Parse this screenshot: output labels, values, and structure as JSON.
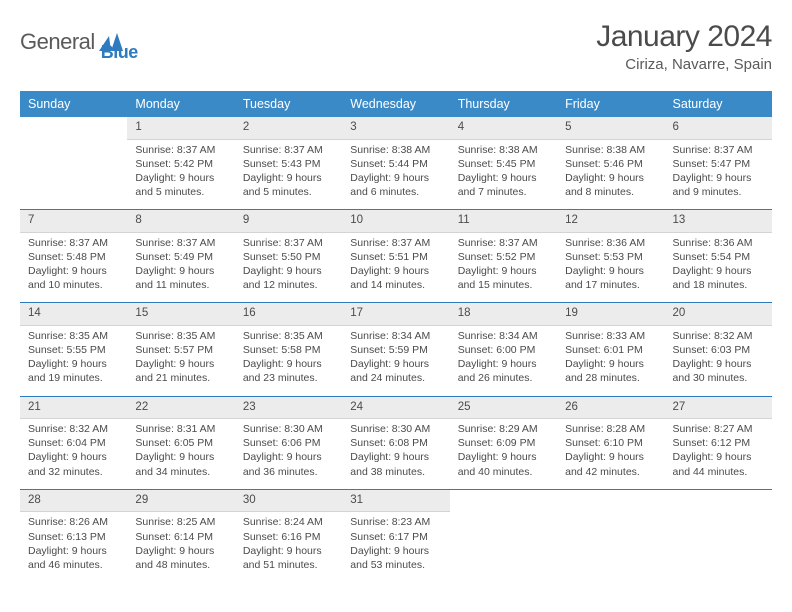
{
  "logo": {
    "text1": "General",
    "text2": "Blue",
    "icon_color": "#2f7bbf"
  },
  "title": "January 2024",
  "location": "Ciriza, Navarre, Spain",
  "colors": {
    "header_bg": "#3a8ac8",
    "header_text": "#ffffff",
    "daynum_bg": "#ececec",
    "separator": "#2f7bbf",
    "body_text": "#4b4b4b"
  },
  "day_names": [
    "Sunday",
    "Monday",
    "Tuesday",
    "Wednesday",
    "Thursday",
    "Friday",
    "Saturday"
  ],
  "weeks": [
    [
      {
        "num": "",
        "sunrise": "",
        "sunset": "",
        "daylight": ""
      },
      {
        "num": "1",
        "sunrise": "Sunrise: 8:37 AM",
        "sunset": "Sunset: 5:42 PM",
        "daylight": "Daylight: 9 hours and 5 minutes."
      },
      {
        "num": "2",
        "sunrise": "Sunrise: 8:37 AM",
        "sunset": "Sunset: 5:43 PM",
        "daylight": "Daylight: 9 hours and 5 minutes."
      },
      {
        "num": "3",
        "sunrise": "Sunrise: 8:38 AM",
        "sunset": "Sunset: 5:44 PM",
        "daylight": "Daylight: 9 hours and 6 minutes."
      },
      {
        "num": "4",
        "sunrise": "Sunrise: 8:38 AM",
        "sunset": "Sunset: 5:45 PM",
        "daylight": "Daylight: 9 hours and 7 minutes."
      },
      {
        "num": "5",
        "sunrise": "Sunrise: 8:38 AM",
        "sunset": "Sunset: 5:46 PM",
        "daylight": "Daylight: 9 hours and 8 minutes."
      },
      {
        "num": "6",
        "sunrise": "Sunrise: 8:37 AM",
        "sunset": "Sunset: 5:47 PM",
        "daylight": "Daylight: 9 hours and 9 minutes."
      }
    ],
    [
      {
        "num": "7",
        "sunrise": "Sunrise: 8:37 AM",
        "sunset": "Sunset: 5:48 PM",
        "daylight": "Daylight: 9 hours and 10 minutes."
      },
      {
        "num": "8",
        "sunrise": "Sunrise: 8:37 AM",
        "sunset": "Sunset: 5:49 PM",
        "daylight": "Daylight: 9 hours and 11 minutes."
      },
      {
        "num": "9",
        "sunrise": "Sunrise: 8:37 AM",
        "sunset": "Sunset: 5:50 PM",
        "daylight": "Daylight: 9 hours and 12 minutes."
      },
      {
        "num": "10",
        "sunrise": "Sunrise: 8:37 AM",
        "sunset": "Sunset: 5:51 PM",
        "daylight": "Daylight: 9 hours and 14 minutes."
      },
      {
        "num": "11",
        "sunrise": "Sunrise: 8:37 AM",
        "sunset": "Sunset: 5:52 PM",
        "daylight": "Daylight: 9 hours and 15 minutes."
      },
      {
        "num": "12",
        "sunrise": "Sunrise: 8:36 AM",
        "sunset": "Sunset: 5:53 PM",
        "daylight": "Daylight: 9 hours and 17 minutes."
      },
      {
        "num": "13",
        "sunrise": "Sunrise: 8:36 AM",
        "sunset": "Sunset: 5:54 PM",
        "daylight": "Daylight: 9 hours and 18 minutes."
      }
    ],
    [
      {
        "num": "14",
        "sunrise": "Sunrise: 8:35 AM",
        "sunset": "Sunset: 5:55 PM",
        "daylight": "Daylight: 9 hours and 19 minutes."
      },
      {
        "num": "15",
        "sunrise": "Sunrise: 8:35 AM",
        "sunset": "Sunset: 5:57 PM",
        "daylight": "Daylight: 9 hours and 21 minutes."
      },
      {
        "num": "16",
        "sunrise": "Sunrise: 8:35 AM",
        "sunset": "Sunset: 5:58 PM",
        "daylight": "Daylight: 9 hours and 23 minutes."
      },
      {
        "num": "17",
        "sunrise": "Sunrise: 8:34 AM",
        "sunset": "Sunset: 5:59 PM",
        "daylight": "Daylight: 9 hours and 24 minutes."
      },
      {
        "num": "18",
        "sunrise": "Sunrise: 8:34 AM",
        "sunset": "Sunset: 6:00 PM",
        "daylight": "Daylight: 9 hours and 26 minutes."
      },
      {
        "num": "19",
        "sunrise": "Sunrise: 8:33 AM",
        "sunset": "Sunset: 6:01 PM",
        "daylight": "Daylight: 9 hours and 28 minutes."
      },
      {
        "num": "20",
        "sunrise": "Sunrise: 8:32 AM",
        "sunset": "Sunset: 6:03 PM",
        "daylight": "Daylight: 9 hours and 30 minutes."
      }
    ],
    [
      {
        "num": "21",
        "sunrise": "Sunrise: 8:32 AM",
        "sunset": "Sunset: 6:04 PM",
        "daylight": "Daylight: 9 hours and 32 minutes."
      },
      {
        "num": "22",
        "sunrise": "Sunrise: 8:31 AM",
        "sunset": "Sunset: 6:05 PM",
        "daylight": "Daylight: 9 hours and 34 minutes."
      },
      {
        "num": "23",
        "sunrise": "Sunrise: 8:30 AM",
        "sunset": "Sunset: 6:06 PM",
        "daylight": "Daylight: 9 hours and 36 minutes."
      },
      {
        "num": "24",
        "sunrise": "Sunrise: 8:30 AM",
        "sunset": "Sunset: 6:08 PM",
        "daylight": "Daylight: 9 hours and 38 minutes."
      },
      {
        "num": "25",
        "sunrise": "Sunrise: 8:29 AM",
        "sunset": "Sunset: 6:09 PM",
        "daylight": "Daylight: 9 hours and 40 minutes."
      },
      {
        "num": "26",
        "sunrise": "Sunrise: 8:28 AM",
        "sunset": "Sunset: 6:10 PM",
        "daylight": "Daylight: 9 hours and 42 minutes."
      },
      {
        "num": "27",
        "sunrise": "Sunrise: 8:27 AM",
        "sunset": "Sunset: 6:12 PM",
        "daylight": "Daylight: 9 hours and 44 minutes."
      }
    ],
    [
      {
        "num": "28",
        "sunrise": "Sunrise: 8:26 AM",
        "sunset": "Sunset: 6:13 PM",
        "daylight": "Daylight: 9 hours and 46 minutes."
      },
      {
        "num": "29",
        "sunrise": "Sunrise: 8:25 AM",
        "sunset": "Sunset: 6:14 PM",
        "daylight": "Daylight: 9 hours and 48 minutes."
      },
      {
        "num": "30",
        "sunrise": "Sunrise: 8:24 AM",
        "sunset": "Sunset: 6:16 PM",
        "daylight": "Daylight: 9 hours and 51 minutes."
      },
      {
        "num": "31",
        "sunrise": "Sunrise: 8:23 AM",
        "sunset": "Sunset: 6:17 PM",
        "daylight": "Daylight: 9 hours and 53 minutes."
      },
      {
        "num": "",
        "sunrise": "",
        "sunset": "",
        "daylight": ""
      },
      {
        "num": "",
        "sunrise": "",
        "sunset": "",
        "daylight": ""
      },
      {
        "num": "",
        "sunrise": "",
        "sunset": "",
        "daylight": ""
      }
    ]
  ]
}
